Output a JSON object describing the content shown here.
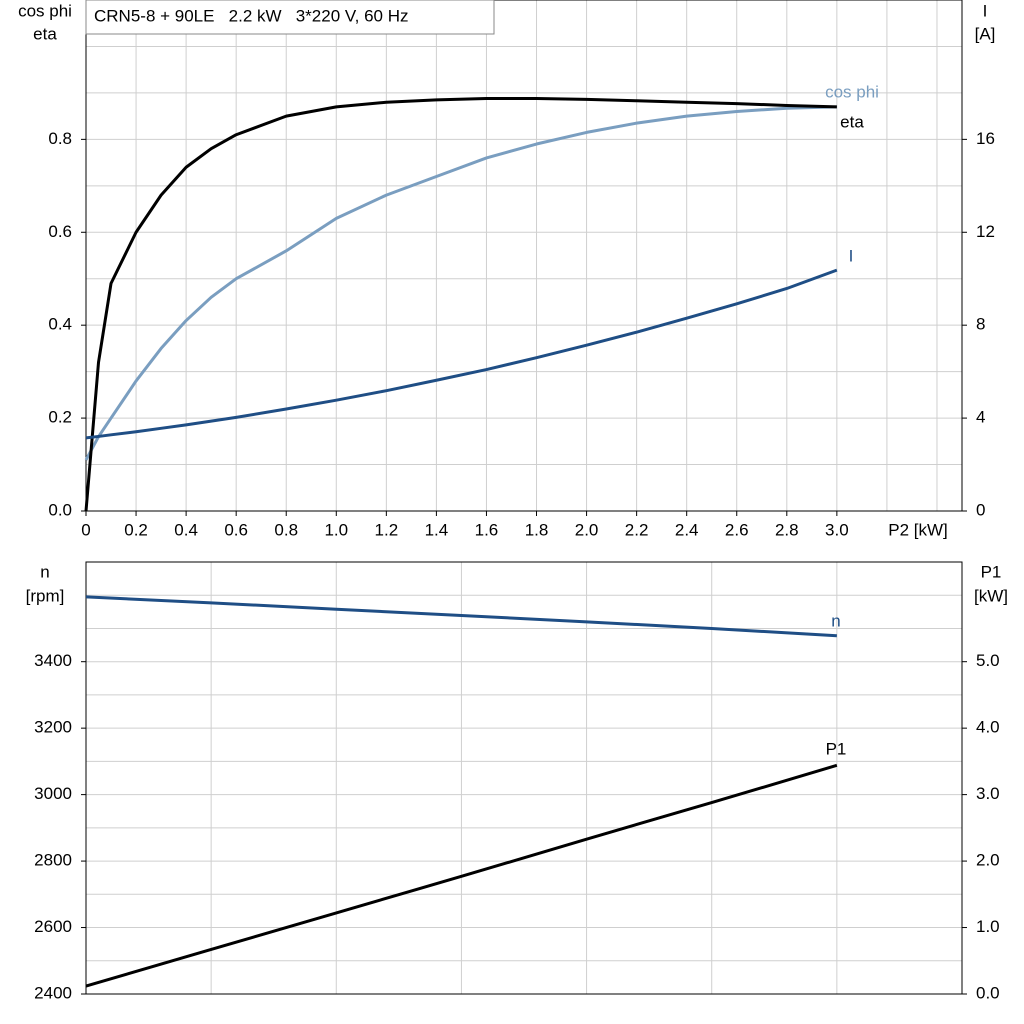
{
  "chart_data": [
    {
      "type": "line",
      "title": "CRN5-8 + 90LE   2.2 kW   3*220 V, 60 Hz",
      "ylabel": [
        "cos phi",
        "eta"
      ],
      "y2label": [
        "I",
        "[A]"
      ],
      "xlabel": "P2 [kW]",
      "x": [
        0,
        0.05,
        0.1,
        0.2,
        0.3,
        0.4,
        0.5,
        0.6,
        0.8,
        1.0,
        1.2,
        1.4,
        1.6,
        1.8,
        2.0,
        2.2,
        2.4,
        2.6,
        2.8,
        3.0
      ],
      "series": [
        {
          "name": "cos phi",
          "color": "#7a9ec0",
          "axis": "y",
          "values": [
            0.11,
            0.16,
            0.2,
            0.28,
            0.35,
            0.41,
            0.46,
            0.5,
            0.56,
            0.63,
            0.68,
            0.72,
            0.76,
            0.79,
            0.815,
            0.835,
            0.85,
            0.86,
            0.867,
            0.87
          ]
        },
        {
          "name": "eta",
          "color": "#000000",
          "axis": "y",
          "values": [
            0,
            0.32,
            0.49,
            0.6,
            0.68,
            0.74,
            0.78,
            0.81,
            0.85,
            0.87,
            0.88,
            0.885,
            0.888,
            0.888,
            0.886,
            0.883,
            0.88,
            0.877,
            0.873,
            0.87
          ]
        },
        {
          "name": "I",
          "color": "#1f4e85",
          "axis": "y2",
          "values": [
            3.15,
            3.21,
            3.28,
            3.41,
            3.56,
            3.71,
            3.87,
            4.03,
            4.39,
            4.77,
            5.18,
            5.63,
            6.09,
            6.6,
            7.14,
            7.7,
            8.3,
            8.92,
            9.58,
            10.37
          ]
        }
      ],
      "xlim": [
        0,
        3.5
      ],
      "xticks": [
        0,
        0.2,
        0.4,
        0.6,
        0.8,
        {
          "value": 1.0,
          "label": "1.0"
        },
        1.2,
        1.4,
        1.6,
        1.8,
        {
          "value": 2.0,
          "label": "2.0"
        },
        2.2,
        2.4,
        2.6,
        2.8,
        {
          "value": 3.0,
          "label": "3.0"
        }
      ],
      "xgrid": [
        0,
        0.2,
        0.4,
        0.6,
        0.8,
        1.0,
        1.2,
        1.4,
        1.6,
        1.8,
        2.0,
        2.2,
        2.4,
        2.6,
        2.8,
        3.0,
        3.2,
        3.4
      ],
      "ylim": [
        0,
        1.1
      ],
      "yticks": [
        {
          "value": 0,
          "label": "0.0"
        },
        0.2,
        0.4,
        0.6,
        0.8
      ],
      "ygrid": [
        0,
        0.1,
        0.2,
        0.3,
        0.4,
        0.5,
        0.6,
        0.7,
        0.8,
        0.9,
        1.0
      ],
      "y2lim": [
        0,
        22
      ],
      "y2ticks": [
        0,
        4,
        8,
        12,
        16
      ]
    },
    {
      "type": "line",
      "ylabel": [
        "n",
        "[rpm]"
      ],
      "y2label": [
        "P1",
        "[kW]"
      ],
      "x": [
        0,
        0.5,
        1.0,
        1.5,
        2.0,
        2.5,
        3.0
      ],
      "series": [
        {
          "name": "n",
          "color": "#1f4e85",
          "axis": "y",
          "values": [
            3595,
            3577,
            3558,
            3539,
            3520,
            3500,
            3478
          ]
        },
        {
          "name": "P1",
          "color": "#000000",
          "axis": "y2",
          "values": [
            0.12,
            0.67,
            1.22,
            1.77,
            2.33,
            2.88,
            3.44
          ]
        }
      ],
      "xlim": [
        0,
        3.5
      ],
      "xgrid": [
        0,
        0.5,
        1.0,
        1.5,
        2.0,
        2.5,
        3.0,
        3.5
      ],
      "ylim": [
        2400,
        3700
      ],
      "yticks": [
        2400,
        2600,
        2800,
        3000,
        3200,
        3400
      ],
      "ygrid": [
        2400,
        2500,
        2600,
        2700,
        2800,
        2900,
        3000,
        3100,
        3200,
        3300,
        3400,
        3500,
        3600
      ],
      "y2lim": [
        0,
        6.5
      ],
      "y2ticks": [
        {
          "value": 0,
          "label": "0.0"
        },
        {
          "value": 1,
          "label": "1.0"
        },
        {
          "value": 2,
          "label": "2.0"
        },
        {
          "value": 3,
          "label": "3.0"
        },
        {
          "value": 4,
          "label": "4.0"
        },
        {
          "value": 5,
          "label": "5.0"
        }
      ]
    }
  ]
}
